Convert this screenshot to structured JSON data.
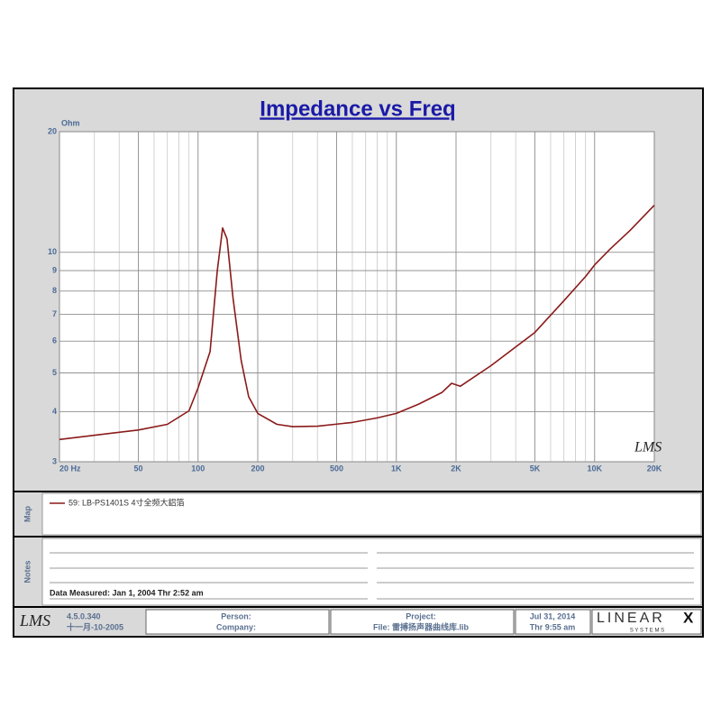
{
  "chart_data": {
    "type": "line",
    "title": "Impedance vs Freq",
    "y_unit": "Ohm",
    "watermark": "LMS",
    "xscale": "log",
    "yscale": "log",
    "grid": true,
    "minor_grid": true,
    "xlim": [
      20,
      20000
    ],
    "ylim": [
      3,
      20
    ],
    "xticks": [
      {
        "value": 20,
        "label": "20 Hz"
      },
      50,
      100,
      200,
      500,
      {
        "value": 1000,
        "label": "1K"
      },
      {
        "value": 2000,
        "label": "2K"
      },
      {
        "value": 5000,
        "label": "5K"
      },
      {
        "value": 10000,
        "label": "10K"
      },
      {
        "value": 20000,
        "label": "20K"
      }
    ],
    "yticks": [
      3,
      4,
      5,
      6,
      7,
      8,
      9,
      10,
      20
    ],
    "x": [
      20,
      50,
      70,
      90,
      100,
      115,
      125,
      133,
      140,
      150,
      165,
      180,
      200,
      250,
      300,
      400,
      600,
      800,
      1000,
      1300,
      1700,
      1900,
      2100,
      3000,
      5000,
      7000,
      9000,
      10000,
      12000,
      15000,
      20000
    ],
    "series": [
      {
        "name": "59: LB-PS1401S 4寸全频大鋁箔",
        "color": "#8b1a1a",
        "values": [
          3.41,
          3.6,
          3.72,
          4.02,
          4.59,
          5.65,
          9.0,
          11.5,
          10.8,
          7.7,
          5.37,
          4.36,
          3.96,
          3.72,
          3.67,
          3.68,
          3.76,
          3.86,
          3.96,
          4.18,
          4.47,
          4.71,
          4.63,
          5.21,
          6.31,
          7.57,
          8.7,
          9.3,
          10.2,
          11.3,
          13.1
        ]
      }
    ]
  },
  "map_label": "Map",
  "notes_label": "Notes",
  "notes": {
    "data_measured": "Data Measured: Jan  1, 2004  Thr  2:52 am"
  },
  "footer": {
    "logo": "LMS",
    "version": "4.5.0.340",
    "build_date": "十一月-10-2005",
    "person": "Person:",
    "company": "Company:",
    "project": "Project:",
    "file": "File: 雷搏扬声器曲线库.lib",
    "date": "Jul 31, 2014",
    "time": "Thr  9:55 am",
    "brand": "LINEAR",
    "brand_x": "X",
    "brand_sub": "S Y S T E M S"
  }
}
